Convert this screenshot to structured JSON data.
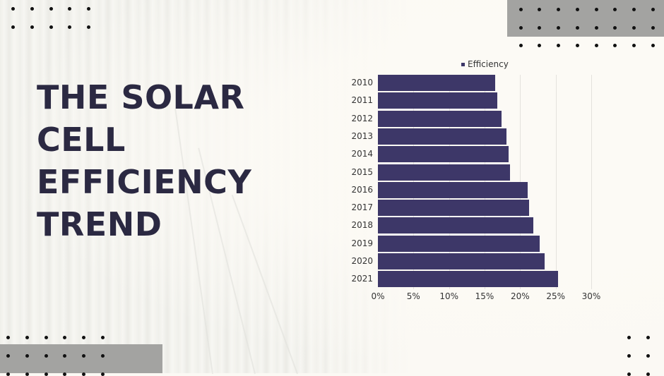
{
  "slide": {
    "title_lines": [
      "THE SOLAR",
      "CELL",
      "EFFICIENCY",
      "TREND"
    ],
    "colors": {
      "background": "#fbf9f4",
      "title": "#2b2942",
      "bar": "#3d3768",
      "decor_gray": "#a3a3a1",
      "dot": "#111111"
    }
  },
  "chart": {
    "legend_label": "Efficiency",
    "y_labels": [
      "2010",
      "2011",
      "2012",
      "2013",
      "2014",
      "2015",
      "2016",
      "2017",
      "2018",
      "2019",
      "2020",
      "2021"
    ],
    "x_ticks": [
      "0%",
      "5%",
      "10%",
      "15%",
      "20%",
      "25%",
      "30%"
    ]
  },
  "chart_data": {
    "type": "bar",
    "orientation": "horizontal",
    "title": "The Solar Cell Efficiency Trend",
    "categories": [
      "2010",
      "2011",
      "2012",
      "2013",
      "2014",
      "2015",
      "2016",
      "2017",
      "2018",
      "2019",
      "2020",
      "2021"
    ],
    "series": [
      {
        "name": "Efficiency",
        "values": [
          16.5,
          16.8,
          17.4,
          18.1,
          18.4,
          18.6,
          21.1,
          21.3,
          21.9,
          22.7,
          23.4,
          25.3
        ],
        "unit": "%",
        "color": "#3d3768"
      }
    ],
    "xlabel": "",
    "ylabel": "",
    "xlim": [
      0,
      30
    ],
    "x_ticks": [
      "0%",
      "5%",
      "10%",
      "15%",
      "20%",
      "25%",
      "30%"
    ],
    "grid": "vertical",
    "legend_position": "top"
  }
}
